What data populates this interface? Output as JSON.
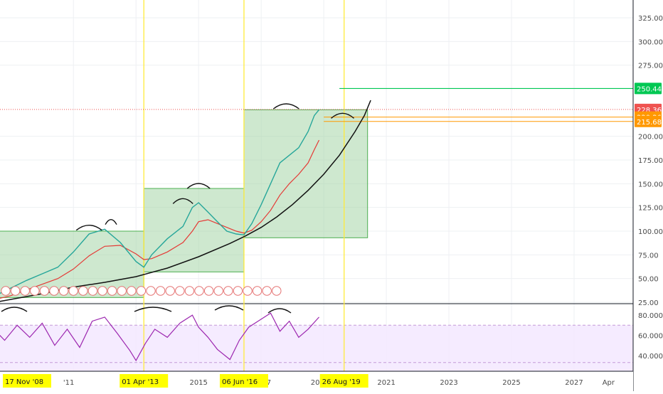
{
  "chart_data": [
    {
      "type": "line",
      "title": "",
      "xlabel": "",
      "ylabel": "",
      "x_ticks": [
        "2011",
        "01 Apr '13",
        "2015",
        "06 Jun '16",
        "2017",
        "2019",
        "26 Aug '19",
        "2021",
        "2023",
        "2025",
        "2027",
        "Apr"
      ],
      "x_tick_labels": [
        "'11",
        "01 Apr '13",
        "2015",
        "06 Jun '16",
        "017",
        "201",
        "26 Aug '19",
        "2021",
        "2023",
        "2025",
        "2027",
        "Apr"
      ],
      "x_date_labels": [
        "17 Nov '08",
        "01 Apr '13",
        "06 Jun '16",
        "26 Aug '19"
      ],
      "y_ticks": [
        25,
        50,
        75,
        100,
        125,
        150,
        175,
        200,
        275,
        300,
        325
      ],
      "y_tick_labels": [
        "25.00",
        "50.00",
        "75.00",
        "100.00",
        "125.00",
        "150.00",
        "175.00",
        "200.00",
        "275.00",
        "300.00",
        "325.00"
      ],
      "ylim": [
        18,
        333
      ],
      "grid": true,
      "price_labels": [
        {
          "value": 250.44,
          "label": "250.44",
          "color": "#00c853"
        },
        {
          "value": 228.36,
          "label": "228.36",
          "color": "#ef5350"
        },
        {
          "value": 220.26,
          "label": "220.26",
          "color": "#ff9800"
        },
        {
          "value": 215.68,
          "label": "215.68",
          "color": "#ff9800"
        }
      ],
      "price_x": [
        2008.0,
        2008.5,
        2009.0,
        2009.5,
        2010.0,
        2010.5,
        2011.0,
        2011.5,
        2012.0,
        2012.5,
        2013.0,
        2013.25,
        2013.5,
        2014.0,
        2014.5,
        2014.8,
        2015.0,
        2015.3,
        2015.6,
        2015.9,
        2016.2,
        2016.45,
        2016.7,
        2017.0,
        2017.3,
        2017.6,
        2017.9,
        2018.2,
        2018.5,
        2018.7,
        2018.85
      ],
      "price_y": [
        28,
        32,
        40,
        48,
        55,
        62,
        78,
        97,
        102,
        88,
        68,
        62,
        75,
        92,
        105,
        125,
        130,
        120,
        110,
        100,
        97,
        96,
        108,
        128,
        150,
        172,
        180,
        188,
        205,
        222,
        228
      ],
      "ma_y": [
        26,
        28,
        32,
        38,
        44,
        50,
        60,
        74,
        84,
        85,
        76,
        70,
        71,
        78,
        88,
        100,
        110,
        112,
        108,
        104,
        100,
        98,
        101,
        110,
        122,
        138,
        150,
        160,
        172,
        186,
        196
      ],
      "curve_x": [
        2008.0,
        2009.0,
        2010.0,
        2011.0,
        2012.0,
        2013.0,
        2014.0,
        2015.0,
        2016.0,
        2016.5,
        2017.0,
        2017.5,
        2018.0,
        2018.5,
        2019.0,
        2019.5,
        2020.0,
        2020.3,
        2020.5
      ],
      "curve_y": [
        22,
        28,
        34,
        41,
        46,
        52,
        61,
        73,
        87,
        95,
        104,
        115,
        128,
        143,
        160,
        180,
        205,
        222,
        238
      ],
      "boxes": [
        {
          "x0": 2008.0,
          "x1": 2013.25,
          "y0": 30,
          "y1": 100
        },
        {
          "x0": 2013.25,
          "x1": 2016.45,
          "y0": 57,
          "y1": 145
        },
        {
          "x0": 2016.45,
          "x1": 2020.4,
          "y0": 93,
          "y1": 228
        }
      ],
      "vlines": [
        2013.25,
        2016.45,
        2019.65
      ]
    },
    {
      "type": "line",
      "title": "",
      "y_ticks": [
        40,
        60,
        80
      ],
      "y_tick_labels": [
        "40.0000",
        "60.0000",
        "80.0000"
      ],
      "ylim": [
        30,
        85
      ],
      "band": [
        40,
        70
      ],
      "band_lines": [
        33,
        70
      ],
      "rsi_x": [
        2008.0,
        2008.4,
        2008.8,
        2009.2,
        2009.6,
        2010.0,
        2010.4,
        2010.8,
        2011.2,
        2011.6,
        2012.0,
        2012.4,
        2012.8,
        2013.0,
        2013.3,
        2013.6,
        2014.0,
        2014.4,
        2014.8,
        2015.0,
        2015.3,
        2015.6,
        2016.0,
        2016.3,
        2016.6,
        2017.0,
        2017.3,
        2017.6,
        2017.9,
        2018.2,
        2018.5,
        2018.85
      ],
      "rsi_y": [
        62,
        68,
        55,
        70,
        58,
        72,
        50,
        66,
        48,
        74,
        78,
        62,
        45,
        35,
        52,
        66,
        58,
        72,
        80,
        68,
        58,
        46,
        36,
        55,
        68,
        76,
        82,
        64,
        74,
        58,
        66,
        78
      ]
    }
  ]
}
